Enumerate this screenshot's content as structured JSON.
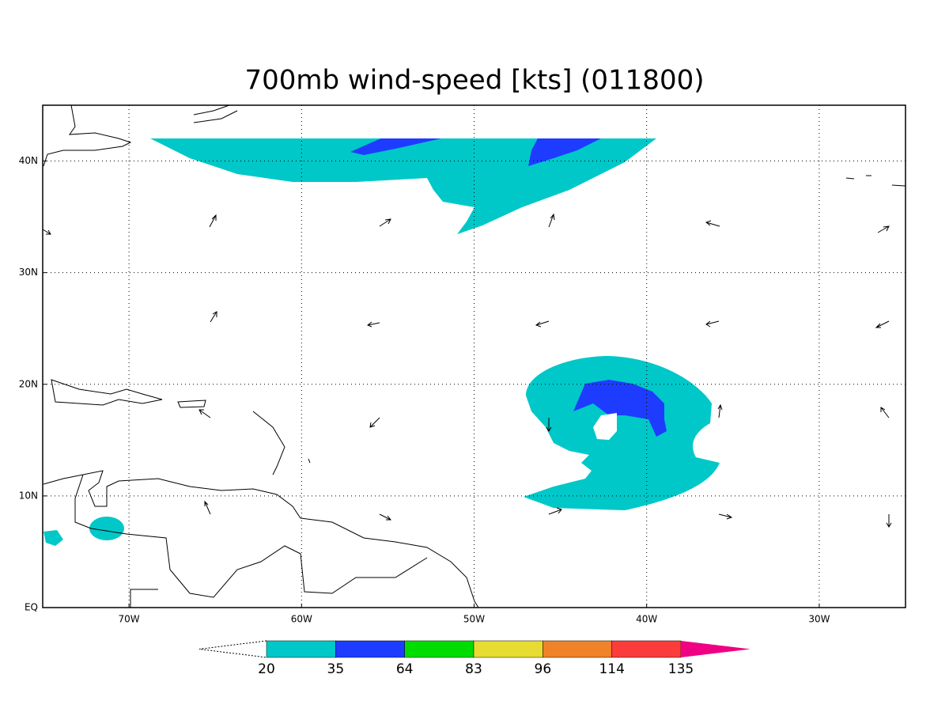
{
  "map": {
    "title": "700mb wind-speed [kts] (011800)",
    "xlim": [
      -75,
      -25
    ],
    "ylim": [
      0,
      45
    ],
    "xticks": [
      {
        "value": -70,
        "label": "70W"
      },
      {
        "value": -60,
        "label": "60W"
      },
      {
        "value": -50,
        "label": "50W"
      },
      {
        "value": -40,
        "label": "40W"
      },
      {
        "value": -30,
        "label": "30W"
      }
    ],
    "yticks": [
      {
        "value": 0,
        "label": "EQ"
      },
      {
        "value": 10,
        "label": "10N"
      },
      {
        "value": 20,
        "label": "20N"
      },
      {
        "value": 30,
        "label": "30N"
      },
      {
        "value": 40,
        "label": "40N"
      }
    ],
    "grid": true,
    "colorbar": {
      "levels": [
        20,
        35,
        64,
        83,
        96,
        114,
        135
      ],
      "colors": [
        "#ffffff",
        "#00c8c8",
        "#1e3cff",
        "#00dc00",
        "#e6dc32",
        "#f08228",
        "#fa3c3c",
        "#f00082"
      ]
    }
  }
}
